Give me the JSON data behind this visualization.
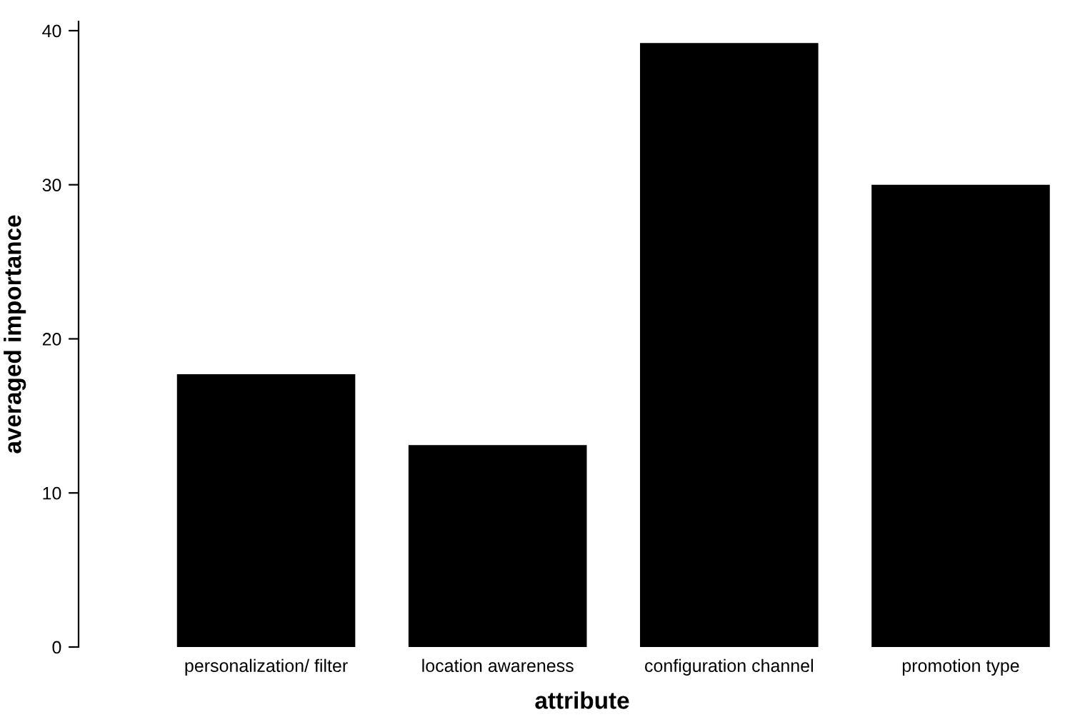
{
  "chart_data": {
    "type": "bar",
    "xlabel": "attribute",
    "ylabel": "averaged importance",
    "categories": [
      "personalization/ filter",
      "location awareness",
      "configuration channel",
      "promotion type"
    ],
    "values": [
      17.7,
      13.1,
      39.2,
      30.0
    ],
    "color": "#000000",
    "ylim": [
      0,
      40.6
    ],
    "yticks": [
      0,
      10,
      20,
      30,
      40
    ],
    "grid": false,
    "legend": false
  }
}
